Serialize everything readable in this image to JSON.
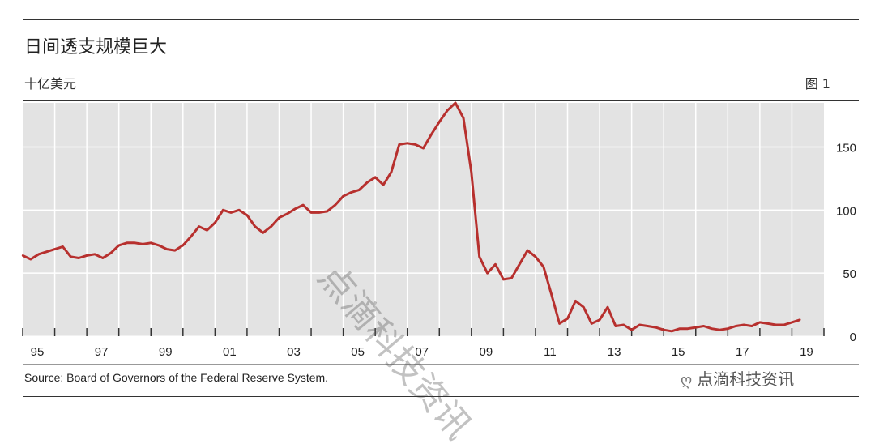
{
  "header": {
    "title": "日间透支规模巨大",
    "unit": "十亿美元",
    "figure_label": "图 1"
  },
  "footer": {
    "source": "Source: Board of Governors of the Federal Reserve System."
  },
  "watermark": {
    "brand": "点滴科技资讯",
    "diagonal": "点滴科技资讯",
    "icon": "wechat-icon"
  },
  "colors": {
    "line": "#b7302e",
    "plot_bg": "#e3e3e3",
    "grid": "#ffffff"
  },
  "chart_data": {
    "type": "line",
    "title": "日间透支规模巨大",
    "ylabel": "十亿美元",
    "xlim": [
      1995,
      2020
    ],
    "ylim": [
      0,
      185
    ],
    "grid": true,
    "y_axis_side": "right",
    "yticks": [
      0,
      50,
      100,
      150
    ],
    "xticks": [
      "95",
      "97",
      "99",
      "01",
      "03",
      "05",
      "07",
      "09",
      "11",
      "13",
      "15",
      "17",
      "19"
    ],
    "series": [
      {
        "x": [
          1995.0,
          1995.25,
          1995.5,
          1995.75,
          1996.0,
          1996.25,
          1996.5,
          1996.75,
          1997.0,
          1997.25,
          1997.5,
          1997.75,
          1998.0,
          1998.25,
          1998.5,
          1998.75,
          1999.0,
          1999.25,
          1999.5,
          1999.75,
          2000.0,
          2000.25,
          2000.5,
          2000.75,
          2001.0,
          2001.25,
          2001.5,
          2001.75,
          2002.0,
          2002.25,
          2002.5,
          2002.75,
          2003.0,
          2003.25,
          2003.5,
          2003.75,
          2004.0,
          2004.25,
          2004.5,
          2004.75,
          2005.0,
          2005.25,
          2005.5,
          2005.75,
          2006.0,
          2006.25,
          2006.5,
          2006.75,
          2007.0,
          2007.25,
          2007.5,
          2007.75,
          2008.0,
          2008.25,
          2008.5,
          2008.75,
          2009.0,
          2009.25,
          2009.5,
          2009.75,
          2010.0,
          2010.25,
          2010.5,
          2010.75,
          2011.0,
          2011.25,
          2011.5,
          2011.75,
          2012.0,
          2012.25,
          2012.5,
          2012.75,
          2013.0,
          2013.25,
          2013.5,
          2013.75,
          2014.0,
          2014.25,
          2014.5,
          2014.75,
          2015.0,
          2015.25,
          2015.5,
          2015.75,
          2016.0,
          2016.25,
          2016.5,
          2016.75,
          2017.0,
          2017.25,
          2017.5,
          2017.75,
          2018.0,
          2018.25,
          2018.5,
          2018.75,
          2019.0,
          2019.25
        ],
        "values": [
          64,
          61,
          65,
          67,
          69,
          71,
          63,
          62,
          64,
          65,
          62,
          66,
          72,
          74,
          74,
          73,
          74,
          72,
          69,
          68,
          72,
          79,
          87,
          84,
          90,
          100,
          98,
          100,
          96,
          87,
          82,
          87,
          94,
          97,
          101,
          104,
          98,
          98,
          99,
          104,
          111,
          114,
          116,
          122,
          126,
          120,
          130,
          152,
          153,
          152,
          149,
          160,
          170,
          179,
          185,
          173,
          130,
          63,
          50,
          57,
          45,
          46,
          57,
          68,
          63,
          55,
          33,
          10,
          14,
          28,
          23,
          10,
          13,
          23,
          8,
          9,
          5,
          9,
          8,
          7,
          5,
          4,
          6,
          6,
          7,
          8,
          6,
          5,
          6,
          8,
          9,
          8,
          11,
          10,
          9,
          9,
          11,
          13
        ]
      }
    ]
  }
}
